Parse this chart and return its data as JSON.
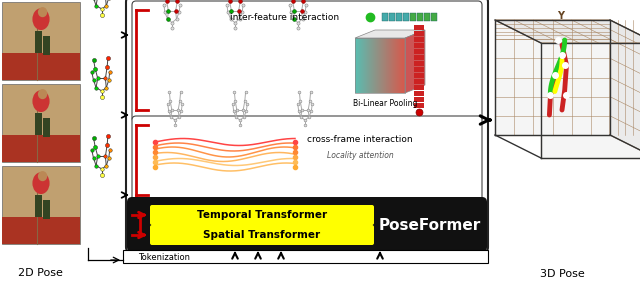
{
  "bg_color": "#ffffff",
  "title_2d": "2D Pose",
  "title_3d": "3D Pose",
  "poseformer_label": "PoseFormer",
  "temporal_label": "Temporal Transformer",
  "spatial_label": "Spatial Transformer",
  "tokenization_label": "Tokenization",
  "inter_feature_label": "inter-feature interaction",
  "cross_frame_label": "cross-frame interaction",
  "locality_label": "Locality attention",
  "bilinear_label": "Bi-Linear Pooling",
  "fig_width": 6.4,
  "fig_height": 2.83,
  "photo_colors": [
    "#c8a080",
    "#b87060",
    "#d09080"
  ],
  "photo_floor_color": "#cc3333",
  "photo_wall_color": "#886644",
  "yellow_box_color": "#ffff00",
  "black_box_color": "#111111",
  "red_bracket_color": "#cc0000",
  "grid_line_color": "#aa8866",
  "grid_bg_color": "#f5f5f5",
  "cube_teal": "#5bbcb0",
  "cube_red": "#cc4444",
  "cube_top": "#e8e8e8"
}
